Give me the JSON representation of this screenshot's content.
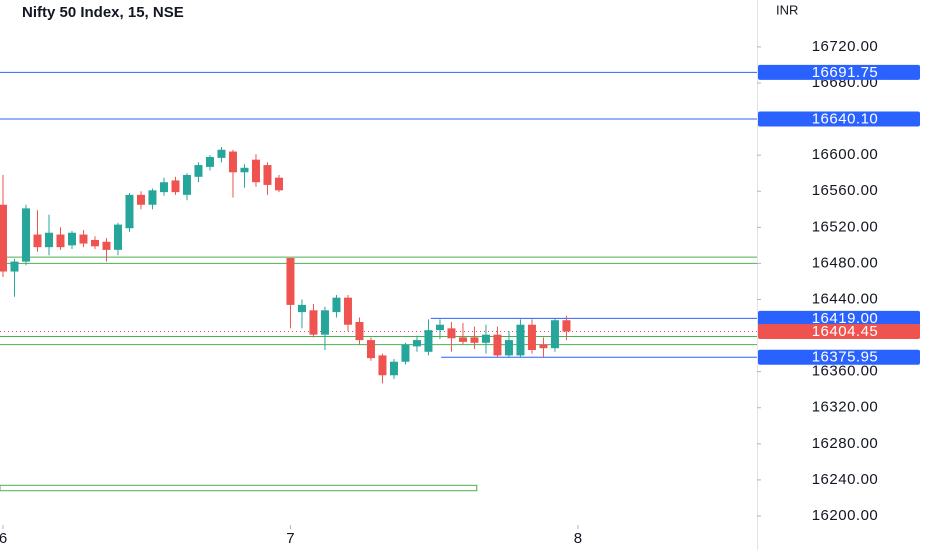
{
  "chart_data": {
    "type": "candlestick",
    "title": "Nifty 50 Index, 15, NSE",
    "currency": "INR",
    "up_color": "#26a69a",
    "down_color": "#ef5350",
    "ylim": [
      16190,
      16772
    ],
    "xlim": [
      -0.26,
      65.57
    ],
    "yticks": [
      {
        "value": 16200,
        "label": "16200.00"
      },
      {
        "value": 16240,
        "label": "16240.00"
      },
      {
        "value": 16280,
        "label": "16280.00"
      },
      {
        "value": 16320,
        "label": "16320.00"
      },
      {
        "value": 16360,
        "label": "16360.00"
      },
      {
        "value": 16440,
        "label": "16440.00"
      },
      {
        "value": 16480,
        "label": "16480.00"
      },
      {
        "value": 16520,
        "label": "16520.00"
      },
      {
        "value": 16560,
        "label": "16560.00"
      },
      {
        "value": 16600,
        "label": "16600.00"
      },
      {
        "value": 16680,
        "label": "16680.00"
      },
      {
        "value": 16720,
        "label": "16720.00"
      }
    ],
    "xticks": [
      {
        "value": 0,
        "label": "6"
      },
      {
        "value": 25,
        "label": "7"
      },
      {
        "value": 50,
        "label": "8"
      }
    ],
    "ohlc": [
      [
        16545,
        16578,
        16465,
        16471
      ],
      [
        16471,
        16485,
        16443,
        16482
      ],
      [
        16482,
        16545,
        16478,
        16541
      ],
      [
        16512,
        16539,
        16493,
        16498
      ],
      [
        16498,
        16534,
        16489,
        16514
      ],
      [
        16512,
        16520,
        16495,
        16498
      ],
      [
        16500,
        16516,
        16496,
        16514
      ],
      [
        16512,
        16517,
        16498,
        16502
      ],
      [
        16506,
        16510,
        16496,
        16499
      ],
      [
        16504,
        16508,
        16482,
        16495
      ],
      [
        16495,
        16525,
        16489,
        16523
      ],
      [
        16519,
        16558,
        16515,
        16556
      ],
      [
        16556,
        16560,
        16540,
        16545
      ],
      [
        16545,
        16563,
        16540,
        16561
      ],
      [
        16559,
        16575,
        16555,
        16570
      ],
      [
        16572,
        16576,
        16556,
        16559
      ],
      [
        16556,
        16580,
        16550,
        16578
      ],
      [
        16576,
        16592,
        16570,
        16589
      ],
      [
        16587,
        16600,
        16583,
        16598
      ],
      [
        16597,
        16609,
        16592,
        16606
      ],
      [
        16604,
        16606,
        16553,
        16581
      ],
      [
        16581,
        16590,
        16564,
        16586
      ],
      [
        16595,
        16601,
        16565,
        16570
      ],
      [
        16589,
        16592,
        16556,
        16567
      ],
      [
        16575,
        16578,
        16559,
        16561
      ],
      [
        16486,
        16486,
        16408,
        16434
      ],
      [
        16426,
        16440,
        16408,
        16434
      ],
      [
        16428,
        16435,
        16398,
        16401
      ],
      [
        16401,
        16432,
        16384,
        16428
      ],
      [
        16426,
        16445,
        16420,
        16442
      ],
      [
        16442,
        16445,
        16405,
        16412
      ],
      [
        16415,
        16420,
        16390,
        16395
      ],
      [
        16395,
        16398,
        16372,
        16375
      ],
      [
        16378,
        16380,
        16347,
        16356
      ],
      [
        16356,
        16374,
        16352,
        16371
      ],
      [
        16371,
        16392,
        16368,
        16390
      ],
      [
        16388,
        16400,
        16382,
        16395
      ],
      [
        16382,
        16418,
        16378,
        16406
      ],
      [
        16406,
        16418,
        16396,
        16412
      ],
      [
        16408,
        16415,
        16382,
        16397
      ],
      [
        16398,
        16414,
        16390,
        16393
      ],
      [
        16398,
        16410,
        16385,
        16392
      ],
      [
        16392,
        16412,
        16380,
        16401
      ],
      [
        16401,
        16410,
        16376,
        16378
      ],
      [
        16378,
        16405,
        16376,
        16395
      ],
      [
        16378,
        16418,
        16376,
        16412
      ],
      [
        16412,
        16418,
        16380,
        16384
      ],
      [
        16390,
        16398,
        16376,
        16386
      ],
      [
        16386,
        16419,
        16382,
        16417
      ],
      [
        16417,
        16422,
        16395,
        16404.45
      ]
    ],
    "green_lines": [
      16487,
      16480,
      16399,
      16390
    ],
    "green_color": "#4caf50",
    "zone": {
      "y": [
        16228,
        16234
      ],
      "x": [
        -0.26,
        41.2
      ]
    },
    "levels": [
      {
        "value": 16691.75,
        "label": "16691.75"
      },
      {
        "value": 16640.1,
        "label": "16640.10"
      },
      {
        "value": 16419,
        "label": "16419.00",
        "x_from": 37.2
      },
      {
        "value": 16375.95,
        "label": "16375.95",
        "x_from": 38.1
      }
    ],
    "level_color": "#2962ff",
    "last_price": 16404.45
  }
}
